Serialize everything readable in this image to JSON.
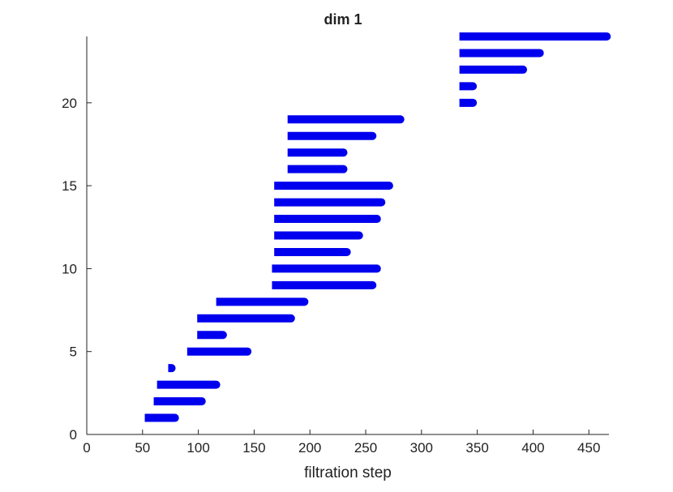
{
  "chart_data": {
    "type": "barcode",
    "title": "dim 1",
    "x_label": "filtration step",
    "color": "#0000ee",
    "y": [
      1,
      2,
      3,
      4,
      5,
      6,
      7,
      8,
      9,
      10,
      11,
      12,
      13,
      14,
      15,
      16,
      17,
      18,
      19,
      20,
      21,
      22,
      23,
      24
    ],
    "start": [
      52,
      60,
      63,
      73,
      90,
      99,
      99,
      116,
      166,
      166,
      168,
      168,
      168,
      168,
      168,
      180,
      180,
      180,
      180,
      334,
      334,
      334,
      334,
      334
    ],
    "end": [
      79,
      103,
      116,
      76,
      144,
      122,
      183,
      195,
      256,
      260,
      233,
      244,
      260,
      264,
      271,
      230,
      230,
      256,
      281,
      346,
      346,
      391,
      406,
      466
    ],
    "xlim": [
      0,
      468
    ],
    "ylim": [
      0,
      24
    ],
    "xticks": [
      0,
      50,
      100,
      150,
      200,
      250,
      300,
      350,
      400,
      450
    ],
    "yticks": [
      0,
      5,
      10,
      15,
      20
    ]
  }
}
